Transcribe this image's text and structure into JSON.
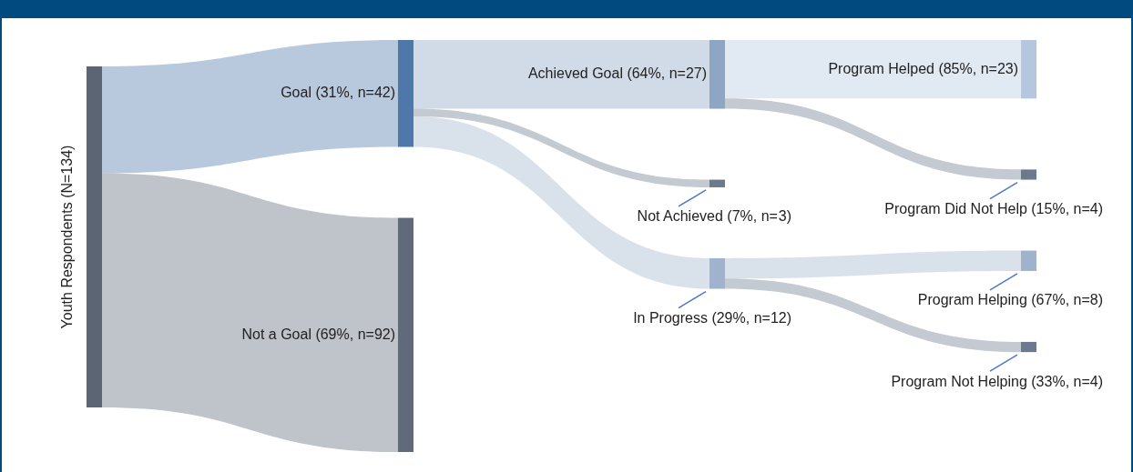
{
  "chart_data": {
    "type": "other",
    "categories": [
      "Youth Respondents (N=134)",
      "Goal (31%, n=42)",
      "Not a Goal (69%, n=92)",
      "Achieved Goal (64%, n=27)",
      "Not Achieved (7%, n=3)",
      "In Progress (29%, n=12)",
      "Program Helped (85%, n=23)",
      "Program Did Not Help (15%, n=4)",
      "Program Helping (67%, n=8)",
      "Program Not Helping (33%, n=4)"
    ],
    "values": [
      134,
      42,
      92,
      27,
      3,
      12,
      23,
      4,
      8,
      4
    ],
    "data_labels": true,
    "colors": [
      "#5b6573",
      "#4d78a9",
      "#5f6a7a",
      "#8da6c3",
      "#6b7b8d",
      "#9fb4cc",
      "#b4c7df",
      "#6b7b8d",
      "#9fb4cc",
      "#6b7b8d"
    ]
  }
}
